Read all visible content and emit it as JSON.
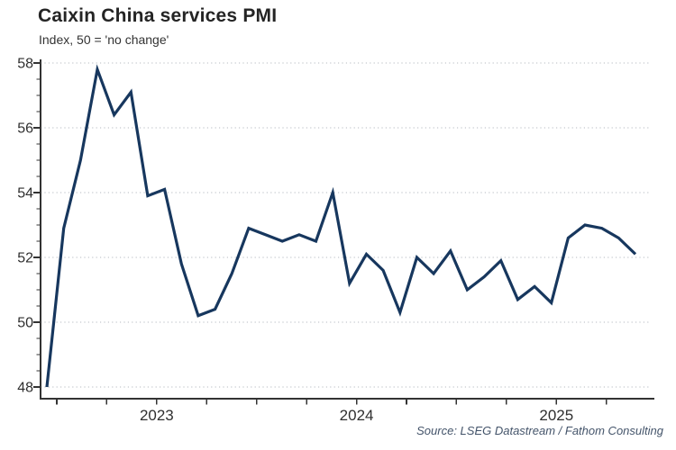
{
  "header": {
    "title": "Caixin China services PMI",
    "subtitle": "Index, 50 = 'no change'"
  },
  "footer": {
    "source": "Source: LSEG Datastream / Fathom Consulting"
  },
  "chart_data": {
    "type": "line",
    "title": "Caixin China services PMI",
    "subtitle": "Index, 50 = 'no change'",
    "source": "Source: LSEG Datastream / Fathom Consulting",
    "x": [
      "Dec 2022",
      "Jan 2023",
      "Feb 2023",
      "Mar 2023",
      "Apr 2023",
      "May 2023",
      "Jun 2023",
      "Jul 2023",
      "Aug 2023",
      "Sep 2023",
      "Oct 2023",
      "Nov 2023",
      "Dec 2023",
      "Jan 2024",
      "Feb 2024",
      "Mar 2024",
      "Apr 2024",
      "May 2024",
      "Jun 2024",
      "Jul 2024",
      "Aug 2024",
      "Sep 2024",
      "Oct 2024",
      "Nov 2024",
      "Dec 2024",
      "Jan 2025",
      "Feb 2025",
      "Mar 2025",
      "Apr 2025",
      "May 2025",
      "Jun 2025",
      "Jul 2025",
      "Aug 2025",
      "Sep 2025",
      "Oct 2025",
      "Nov 2025"
    ],
    "values": [
      48.0,
      52.9,
      55.0,
      57.8,
      56.4,
      57.1,
      53.9,
      54.1,
      51.8,
      50.2,
      50.4,
      51.5,
      52.9,
      52.7,
      52.5,
      52.7,
      52.5,
      54.0,
      51.2,
      52.1,
      51.6,
      50.3,
      52.0,
      51.5,
      52.2,
      51.0,
      51.4,
      51.9,
      50.7,
      51.1,
      50.6,
      52.6,
      53.0,
      52.9,
      52.6,
      52.1
    ],
    "series_name": "Caixin China services PMI",
    "ylim": [
      48,
      58
    ],
    "yticks": [
      48,
      50,
      52,
      54,
      56,
      58
    ],
    "ytick_minor_step": 0.5,
    "xtick_year_labels": [
      "2023",
      "2024",
      "2025"
    ],
    "xtick_interval": "quarterly",
    "grid": "horizontal-dotted",
    "legend": "none",
    "colors": {
      "line": "#17375e",
      "axis": "#333333",
      "grid": "#c3c7cd",
      "tick_label": "#2f2f2f"
    }
  }
}
